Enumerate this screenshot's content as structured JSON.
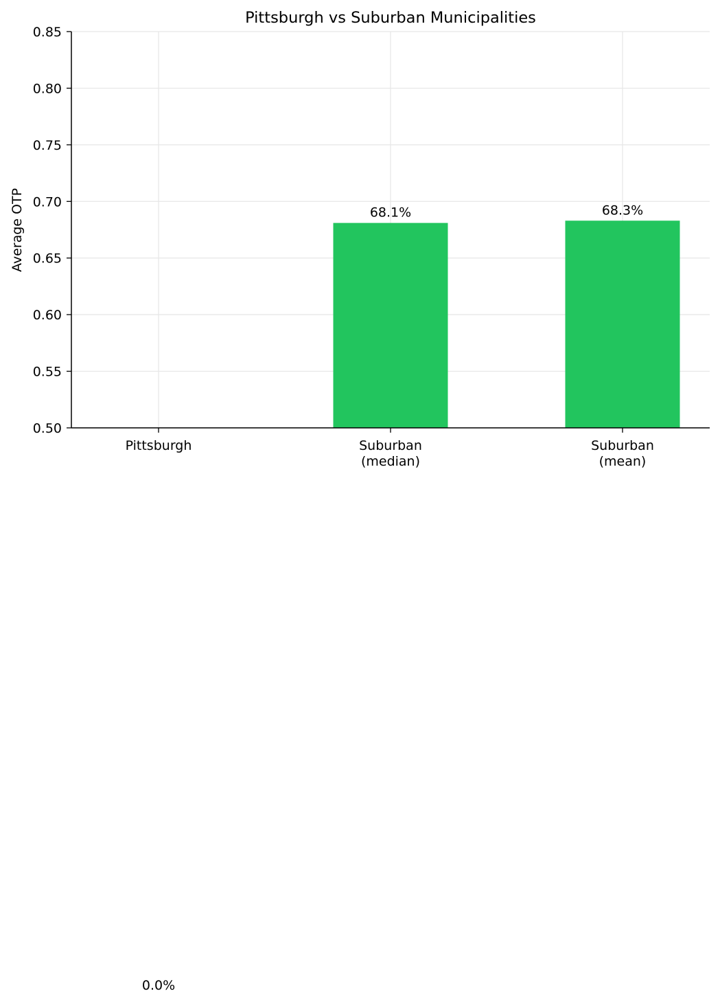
{
  "chart_data": {
    "type": "bar",
    "title": "Pittsburgh vs Suburban Municipalities",
    "xlabel": "",
    "ylabel": "Average OTP",
    "categories": [
      [
        "Pittsburgh"
      ],
      [
        "Suburban",
        "(median)"
      ],
      [
        "Suburban",
        "(mean)"
      ]
    ],
    "values": [
      0.0,
      0.681,
      0.683
    ],
    "value_labels": [
      "0.0%",
      "68.1%",
      "68.3%"
    ],
    "ylim": [
      0.5,
      0.85
    ],
    "yticks": [
      0.5,
      0.55,
      0.6,
      0.65,
      0.7,
      0.75,
      0.8,
      0.85
    ],
    "ytick_labels": [
      "0.50",
      "0.55",
      "0.60",
      "0.65",
      "0.70",
      "0.75",
      "0.80",
      "0.85"
    ],
    "bar_color": "#22c55e",
    "grid": true,
    "legend": "none"
  }
}
